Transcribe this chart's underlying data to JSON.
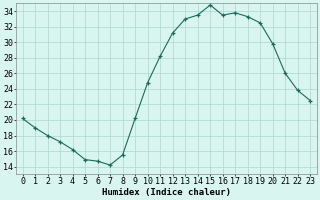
{
  "x": [
    0,
    1,
    2,
    3,
    4,
    5,
    6,
    7,
    8,
    9,
    10,
    11,
    12,
    13,
    14,
    15,
    16,
    17,
    18,
    19,
    20,
    21,
    22,
    23
  ],
  "y": [
    20.2,
    19.0,
    18.0,
    17.2,
    16.2,
    14.9,
    14.7,
    14.2,
    15.5,
    20.2,
    24.8,
    28.2,
    31.2,
    33.0,
    33.5,
    34.8,
    33.5,
    33.8,
    33.3,
    32.5,
    29.8,
    26.0,
    23.8,
    22.5
  ],
  "line_color": "#1a6b5a",
  "marker_color": "#1a6b5a",
  "bg_color": "#d9f5f0",
  "grid_color": "#aad8ce",
  "xlabel": "Humidex (Indice chaleur)",
  "ylim": [
    13,
    35
  ],
  "yticks": [
    14,
    16,
    18,
    20,
    22,
    24,
    26,
    28,
    30,
    32,
    34
  ],
  "xticks": [
    0,
    1,
    2,
    3,
    4,
    5,
    6,
    7,
    8,
    9,
    10,
    11,
    12,
    13,
    14,
    15,
    16,
    17,
    18,
    19,
    20,
    21,
    22,
    23
  ],
  "label_fontsize": 6.5,
  "tick_fontsize": 6.0
}
